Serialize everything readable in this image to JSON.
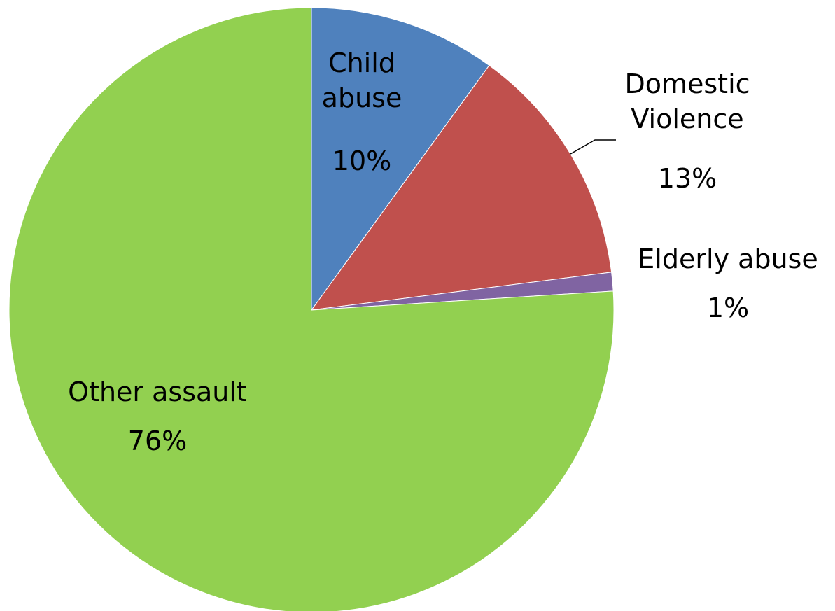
{
  "chart_data": {
    "type": "pie",
    "categories": [
      "Child abuse",
      "Domestic Violence",
      "Elderly abuse",
      "Other assault"
    ],
    "values": [
      10,
      13,
      1,
      76
    ],
    "value_labels": [
      "10%",
      "13%",
      "1%",
      "76%"
    ],
    "colors": [
      "#4f81bd",
      "#c0504d",
      "#8064a2",
      "#92d050"
    ]
  }
}
